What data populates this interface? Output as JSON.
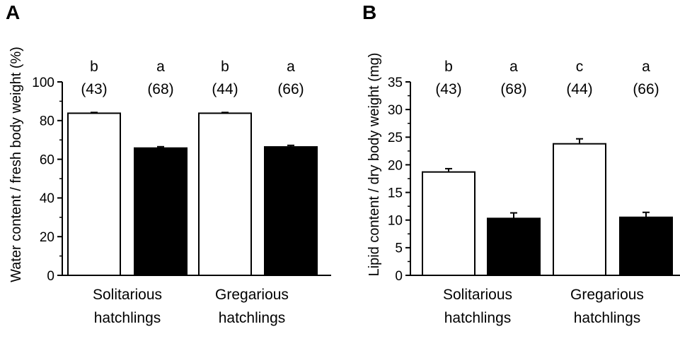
{
  "chart_data": [
    {
      "panel": "A",
      "type": "bar",
      "title": "",
      "xlabel": "",
      "ylabel": "Water content / fresh body weight (%)",
      "ylim": [
        0,
        100
      ],
      "yticks": [
        0,
        20,
        40,
        60,
        80,
        100
      ],
      "groups": [
        {
          "line1": "Solitarious",
          "line2": "hatchlings"
        },
        {
          "line1": "Gregarious",
          "line2": "hatchlings"
        }
      ],
      "bars": [
        {
          "value": 83.8,
          "error": 0.4,
          "fill": "#ffffff",
          "letter": "b",
          "n": "(43)"
        },
        {
          "value": 65.8,
          "error": 0.7,
          "fill": "#000000",
          "letter": "a",
          "n": "(68)"
        },
        {
          "value": 83.8,
          "error": 0.4,
          "fill": "#ffffff",
          "letter": "b",
          "n": "(44)"
        },
        {
          "value": 66.4,
          "error": 0.8,
          "fill": "#000000",
          "letter": "a",
          "n": "(66)"
        }
      ]
    },
    {
      "panel": "B",
      "type": "bar",
      "title": "",
      "xlabel": "",
      "ylabel": "Lipid content / dry body weight (mg)",
      "ylim": [
        0,
        35
      ],
      "yticks": [
        0,
        5,
        10,
        15,
        20,
        25,
        30,
        35
      ],
      "groups": [
        {
          "line1": "Solitarious",
          "line2": "hatchlings"
        },
        {
          "line1": "Gregarious",
          "line2": "hatchlings"
        }
      ],
      "bars": [
        {
          "value": 18.7,
          "error": 0.6,
          "fill": "#ffffff",
          "letter": "b",
          "n": "(43)"
        },
        {
          "value": 10.3,
          "error": 1.0,
          "fill": "#000000",
          "letter": "a",
          "n": "(68)"
        },
        {
          "value": 23.8,
          "error": 0.9,
          "fill": "#ffffff",
          "letter": "c",
          "n": "(44)"
        },
        {
          "value": 10.5,
          "error": 0.9,
          "fill": "#000000",
          "letter": "a",
          "n": "(66)"
        }
      ]
    }
  ]
}
